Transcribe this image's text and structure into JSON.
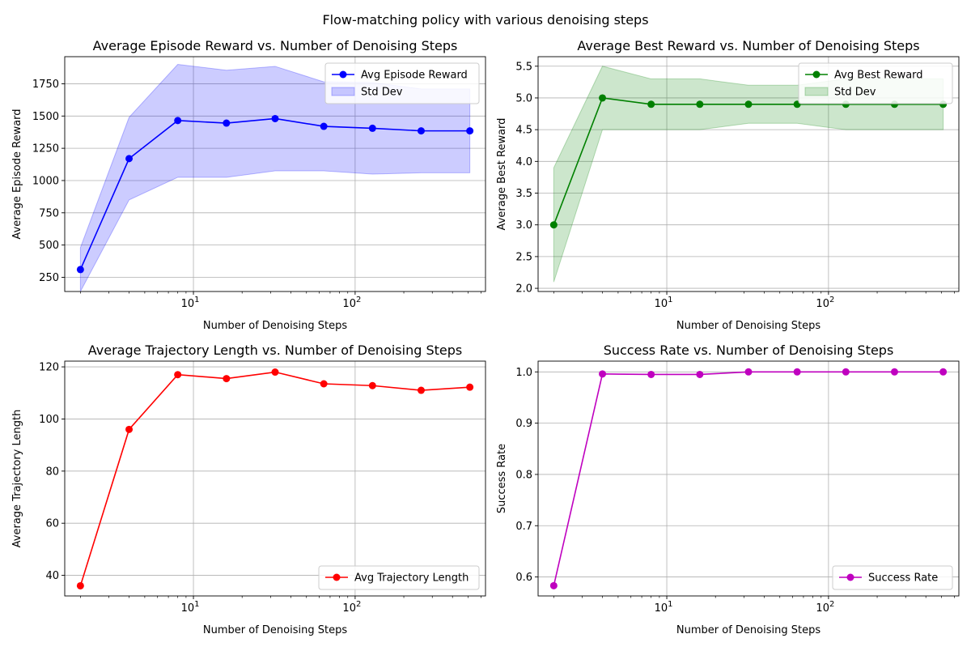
{
  "figure": {
    "suptitle": "Flow-matching policy with various denoising steps"
  },
  "chart_data": [
    {
      "type": "line",
      "title": "Average Episode Reward vs. Number of Denoising Steps",
      "xlabel": "Number of Denoising Steps",
      "ylabel": "Average Episode Reward",
      "xscale": "log",
      "x": [
        2,
        4,
        8,
        16,
        32,
        64,
        128,
        256,
        512
      ],
      "xlim": [
        1.6,
        640
      ],
      "ylim": [
        140,
        1960
      ],
      "xticks": [
        {
          "value": 10,
          "base": "10",
          "exp": "1"
        },
        {
          "value": 100,
          "base": "10",
          "exp": "2"
        }
      ],
      "yticks": [
        250,
        500,
        750,
        1000,
        1250,
        1500,
        1750
      ],
      "grid": true,
      "legend": "upper right",
      "series": [
        {
          "name": "Avg Episode Reward",
          "values": [
            310,
            1170,
            1465,
            1445,
            1480,
            1420,
            1405,
            1385,
            1385
          ],
          "color": "#0000ff",
          "marker": "circle",
          "band": {
            "name": "Std Dev",
            "lower": [
              140,
              850,
              1025,
              1025,
              1075,
              1075,
              1050,
              1060,
              1060
            ],
            "upper": [
              480,
              1490,
              1900,
              1855,
              1885,
              1765,
              1760,
              1710,
              1710
            ],
            "color": "#0000ff",
            "opacity": 0.2
          }
        }
      ]
    },
    {
      "type": "line",
      "title": "Average Best Reward vs. Number of Denoising Steps",
      "xlabel": "Number of Denoising Steps",
      "ylabel": "Average Best Reward",
      "xscale": "log",
      "x": [
        2,
        4,
        8,
        16,
        32,
        64,
        128,
        256,
        512
      ],
      "xlim": [
        1.6,
        640
      ],
      "ylim": [
        1.95,
        5.65
      ],
      "xticks": [
        {
          "value": 10,
          "base": "10",
          "exp": "1"
        },
        {
          "value": 100,
          "base": "10",
          "exp": "2"
        }
      ],
      "yticks": [
        2.0,
        2.5,
        3.0,
        3.5,
        4.0,
        4.5,
        5.0,
        5.5
      ],
      "ytick_decimals": 1,
      "grid": true,
      "legend": "upper right",
      "series": [
        {
          "name": "Avg Best Reward",
          "values": [
            3.0,
            5.0,
            4.9,
            4.9,
            4.9,
            4.9,
            4.9,
            4.9,
            4.9
          ],
          "color": "#008000",
          "marker": "circle",
          "band": {
            "name": "Std Dev",
            "lower": [
              2.1,
              4.5,
              4.5,
              4.5,
              4.6,
              4.6,
              4.5,
              4.5,
              4.5
            ],
            "upper": [
              3.9,
              5.5,
              5.3,
              5.3,
              5.2,
              5.2,
              5.3,
              5.3,
              5.3
            ],
            "color": "#008000",
            "opacity": 0.2
          }
        }
      ]
    },
    {
      "type": "line",
      "title": "Average Trajectory Length vs. Number of Denoising Steps",
      "xlabel": "Number of Denoising Steps",
      "ylabel": "Average Trajectory Length",
      "xscale": "log",
      "x": [
        2,
        4,
        8,
        16,
        32,
        64,
        128,
        256,
        512
      ],
      "xlim": [
        1.6,
        640
      ],
      "ylim": [
        32.1,
        122.2
      ],
      "xticks": [
        {
          "value": 10,
          "base": "10",
          "exp": "1"
        },
        {
          "value": 100,
          "base": "10",
          "exp": "2"
        }
      ],
      "yticks": [
        40,
        60,
        80,
        100,
        120
      ],
      "grid": true,
      "legend": "lower right",
      "series": [
        {
          "name": "Avg Trajectory Length",
          "values": [
            36.0,
            96.0,
            117.0,
            115.5,
            118.0,
            113.5,
            112.8,
            111.0,
            112.2
          ],
          "color": "#ff0000",
          "marker": "circle"
        }
      ]
    },
    {
      "type": "line",
      "title": "Success Rate vs. Number of Denoising Steps",
      "xlabel": "Number of Denoising Steps",
      "ylabel": "Success Rate",
      "xscale": "log",
      "x": [
        2,
        4,
        8,
        16,
        32,
        64,
        128,
        256,
        512
      ],
      "xlim": [
        1.6,
        640
      ],
      "ylim": [
        0.563,
        1.021
      ],
      "xticks": [
        {
          "value": 10,
          "base": "10",
          "exp": "1"
        },
        {
          "value": 100,
          "base": "10",
          "exp": "2"
        }
      ],
      "yticks": [
        0.6,
        0.7,
        0.8,
        0.9,
        1.0
      ],
      "ytick_decimals": 1,
      "grid": true,
      "legend": "lower right",
      "series": [
        {
          "name": "Success Rate",
          "values": [
            0.583,
            0.996,
            0.995,
            0.995,
            1.0,
            1.0,
            1.0,
            1.0,
            1.0
          ],
          "color": "#bf00bf",
          "marker": "circle"
        }
      ]
    }
  ]
}
